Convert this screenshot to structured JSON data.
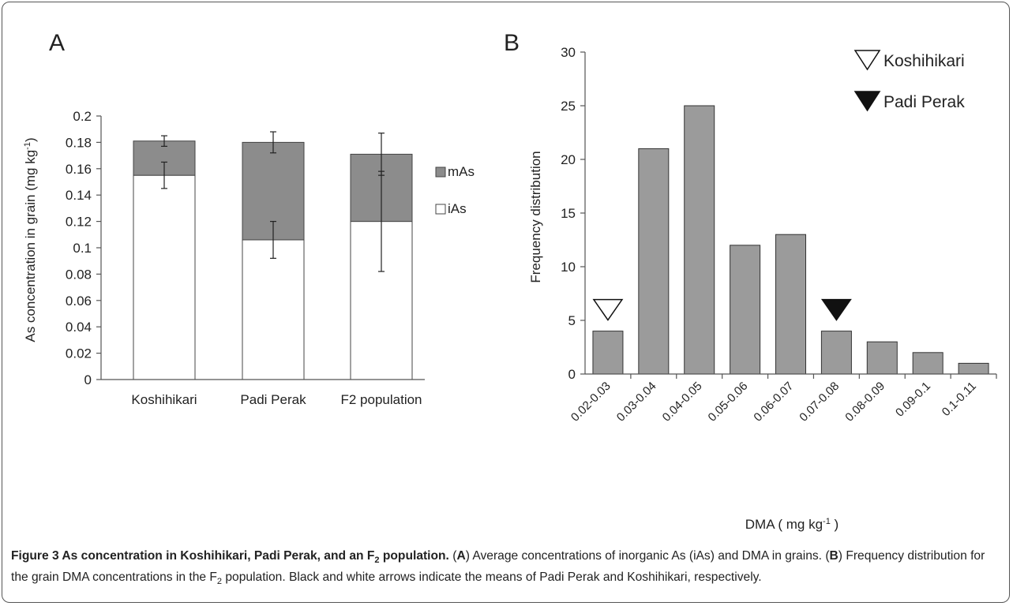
{
  "panel_a": {
    "letter": "A",
    "ylabel": "As concentration in grain (mg kg",
    "ylabel_sup": "-1",
    "ylabel_end": ")",
    "legend": [
      {
        "label": "mAs",
        "color": "#8c8c8c"
      },
      {
        "label": "iAs",
        "color": "#ffffff"
      }
    ]
  },
  "panel_b": {
    "letter": "B",
    "ylabel": "Frequency distribution",
    "xlabel": "DMA  ( mg kg",
    "xlabel_sup": "-1",
    "xlabel_end": " )",
    "markers": [
      {
        "label": "Koshihikari",
        "style": "open-triangle",
        "category": "0.02-0.03"
      },
      {
        "label": "Padi Perak",
        "style": "filled-triangle",
        "category": "0.07-0.08"
      }
    ]
  },
  "chart_data": [
    {
      "type": "bar",
      "stacked": true,
      "categories": [
        "Koshihikari",
        "Padi Perak",
        "F2 population"
      ],
      "series": [
        {
          "name": "iAs",
          "values": [
            0.155,
            0.106,
            0.12
          ],
          "error": [
            0.01,
            0.014,
            0.038
          ],
          "color": "#ffffff"
        },
        {
          "name": "mAs",
          "values": [
            0.026,
            0.074,
            0.051
          ],
          "error": [
            0.004,
            0.008,
            0.016
          ],
          "color": "#8c8c8c"
        }
      ],
      "ylim": [
        0,
        0.2
      ],
      "yticks": [
        "0",
        "0.02",
        "0.04",
        "0.06",
        "0.08",
        "0.1",
        "0.12",
        "0.14",
        "0.16",
        "0.18",
        "0.2"
      ],
      "title": "",
      "xlabel": "",
      "ylabel": "As concentration in grain (mg kg-1)",
      "legend": "right"
    },
    {
      "type": "bar",
      "categories": [
        "0.02-0.03",
        "0.03-0.04",
        "0.04-0.05",
        "0.05-0.06",
        "0.06-0.07",
        "0.07-0.08",
        "0.08-0.09",
        "0.09-0.1",
        "0.1-0.11"
      ],
      "values": [
        4,
        21,
        25,
        12,
        13,
        4,
        3,
        2,
        1
      ],
      "color": "#9b9b9b",
      "ylim": [
        0,
        30
      ],
      "yticks": [
        "0",
        "5",
        "10",
        "15",
        "20",
        "25",
        "30"
      ],
      "title": "",
      "xlabel": "DMA ( mg kg-1 )",
      "ylabel": "Frequency distribution"
    }
  ],
  "caption": {
    "figure_label": "Figure 3",
    "title_pre": " As concentration in Koshihikari, Padi Perak, and an F",
    "title_sub": "2",
    "title_post": " population.",
    "p1": " (",
    "a_ref": "A",
    "p2": ") Average concentrations of inorganic As (iAs) and DMA in grains. (",
    "b_ref": "B",
    "p3": ") Frequency distribution for the grain DMA concentrations in the F",
    "p3_sub": "2",
    "p4": " population. Black and white arrows indicate the means of Padi Perak and Koshihikari, respectively."
  }
}
